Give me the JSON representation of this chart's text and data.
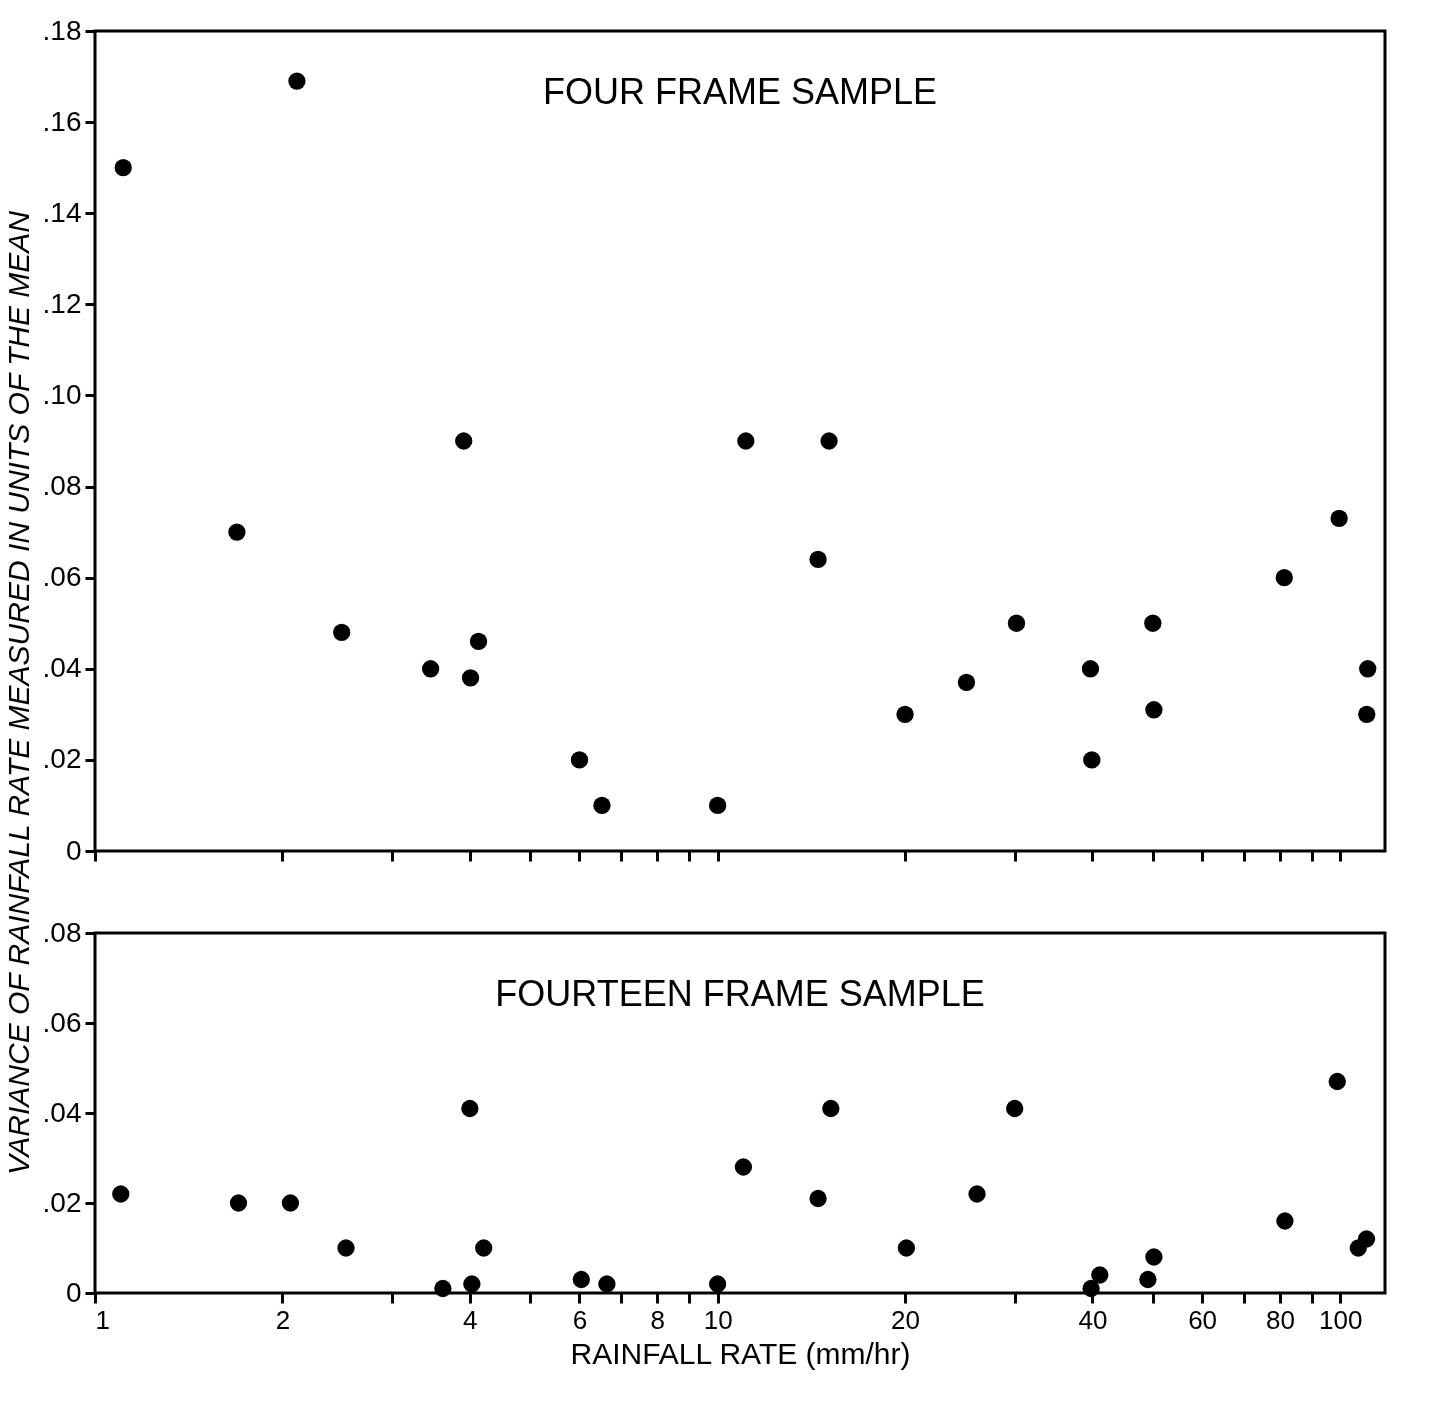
{
  "chart_data": [
    {
      "type": "scatter",
      "title": "FOUR FRAME SAMPLE",
      "ylabel": "VARIANCE OF RAINFALL RATE MEASURED IN UNITS OF THE MEAN",
      "log": "x",
      "marker": "circle",
      "grid": false,
      "tick_labels": "y",
      "x": [
        1.11,
        2.11,
        1.69,
        2.49,
        3.46,
        3.91,
        4.01,
        4.13,
        6.0,
        6.52,
        10.0,
        11.1,
        15.1,
        14.5,
        20.0,
        25.1,
        30.2,
        39.7,
        39.9,
        50.0,
        50.2,
        81.3,
        99.6,
        110.7,
        110.3
      ],
      "series": [
        {
          "color": "#000000",
          "values": [
            0.15,
            0.169,
            0.07,
            0.048,
            0.04,
            0.09,
            0.038,
            0.046,
            0.02,
            0.01,
            0.01,
            0.09,
            0.09,
            0.064,
            0.03,
            0.037,
            0.05,
            0.04,
            0.02,
            0.05,
            0.031,
            0.06,
            0.073,
            0.04,
            0.03
          ]
        }
      ],
      "xlim": [
        1,
        118
      ],
      "ylim": [
        0,
        0.18
      ],
      "xticks": [
        1,
        2,
        {
          "value": 3,
          "label": null
        },
        4,
        {
          "value": 5,
          "label": null
        },
        6,
        {
          "value": 7,
          "label": null
        },
        8,
        {
          "value": 9,
          "label": null
        },
        10,
        20,
        {
          "value": 30,
          "label": null
        },
        40,
        {
          "value": 50,
          "label": null
        },
        60,
        {
          "value": 70,
          "label": null
        },
        80,
        {
          "value": 90,
          "label": null
        },
        100
      ],
      "yticks": [
        0,
        {
          "value": 0.02,
          "label": ".02"
        },
        {
          "value": 0.04,
          "label": ".04"
        },
        {
          "value": 0.06,
          "label": ".06"
        },
        {
          "value": 0.08,
          "label": ".08"
        },
        {
          "value": 0.1,
          "label": ".10"
        },
        {
          "value": 0.12,
          "label": ".12"
        },
        {
          "value": 0.14,
          "label": ".14"
        },
        {
          "value": 0.16,
          "label": ".16"
        },
        {
          "value": 0.18,
          "label": ".18"
        }
      ]
    },
    {
      "type": "scatter",
      "title": "FOURTEEN FRAME SAMPLE",
      "xlabel": "RAINFALL RATE  (mm/hr)",
      "log": "x",
      "marker": "circle",
      "grid": false,
      "x": [
        1.1,
        1.7,
        2.06,
        2.53,
        3.62,
        4.0,
        4.03,
        4.21,
        6.04,
        6.64,
        10.0,
        11.0,
        14.5,
        15.2,
        20.1,
        26.1,
        30.0,
        39.8,
        41.1,
        49.1,
        50.2,
        81.5,
        98.9,
        106.9,
        110.2
      ],
      "series": [
        {
          "color": "#000000",
          "values": [
            0.022,
            0.02,
            0.02,
            0.01,
            0.001,
            0.041,
            0.002,
            0.01,
            0.003,
            0.002,
            0.002,
            0.028,
            0.021,
            0.041,
            0.01,
            0.022,
            0.041,
            0.001,
            0.004,
            0.003,
            0.008,
            0.016,
            0.047,
            0.01,
            0.012
          ]
        }
      ],
      "xlim": [
        1,
        118
      ],
      "ylim": [
        0,
        0.08
      ],
      "xticks": [
        1,
        2,
        {
          "value": 3,
          "label": null
        },
        4,
        {
          "value": 5,
          "label": null
        },
        6,
        {
          "value": 7,
          "label": null
        },
        8,
        {
          "value": 9,
          "label": null
        },
        10,
        20,
        {
          "value": 30,
          "label": null
        },
        40,
        {
          "value": 50,
          "label": null
        },
        60,
        {
          "value": 70,
          "label": null
        },
        80,
        {
          "value": 90,
          "label": null
        },
        100
      ],
      "yticks": [
        0,
        {
          "value": 0.02,
          "label": ".02"
        },
        {
          "value": 0.04,
          "label": ".04"
        },
        {
          "value": 0.06,
          "label": ".06"
        },
        {
          "value": 0.08,
          "label": ".08"
        }
      ]
    }
  ]
}
